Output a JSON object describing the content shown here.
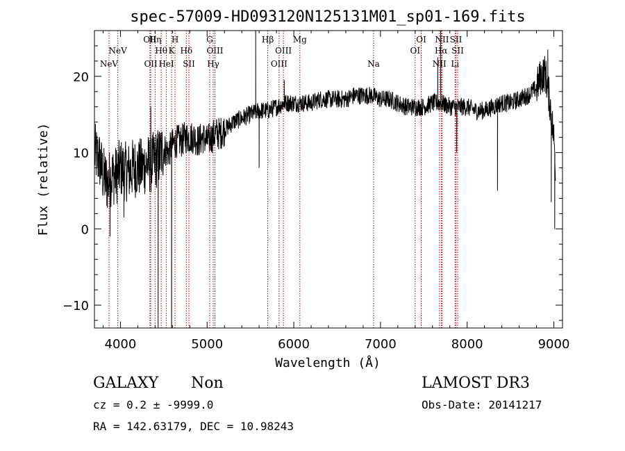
{
  "chart_data": {
    "type": "line",
    "title": "spec-57009-HD093120N125131M01_sp01-169.fits",
    "xlabel": "Wavelength (Å)",
    "ylabel": "Flux (relative)",
    "xlim": [
      3700,
      9100
    ],
    "ylim": [
      -13,
      26
    ],
    "xticks": [
      4000,
      5000,
      6000,
      7000,
      8000,
      9000
    ],
    "yticks": [
      -10,
      0,
      10,
      20
    ],
    "colors": {
      "spectrum": "#000000",
      "lines": "#aa0000",
      "axes": "#000000"
    },
    "spectrum_anchors": {
      "wavelength": [
        3700,
        3760,
        3800,
        3850,
        3900,
        3950,
        4000,
        4050,
        4100,
        4150,
        4200,
        4250,
        4300,
        4350,
        4400,
        4450,
        4500,
        4550,
        4600,
        4650,
        4700,
        4750,
        4800,
        4850,
        4900,
        4950,
        5000,
        5050,
        5100,
        5150,
        5200,
        5300,
        5400,
        5500,
        5600,
        5700,
        5800,
        5900,
        6000,
        6100,
        6200,
        6300,
        6400,
        6500,
        6600,
        6700,
        6800,
        6900,
        7000,
        7100,
        7200,
        7300,
        7400,
        7500,
        7600,
        7650,
        7700,
        7800,
        7900,
        8000,
        8100,
        8200,
        8300,
        8400,
        8500,
        8600,
        8700,
        8800,
        8850,
        8900,
        8950,
        9000,
        9020
      ],
      "flux": [
        10,
        9,
        7,
        6,
        7,
        7,
        8,
        7.5,
        7.5,
        8,
        8,
        8,
        8.5,
        8.5,
        9,
        9.5,
        10.5,
        10,
        11,
        11.5,
        11.5,
        12,
        12,
        12,
        11.5,
        12,
        11.5,
        12,
        12.5,
        12.5,
        13,
        14,
        14.5,
        15,
        15.5,
        15.5,
        16,
        16.5,
        16.5,
        16.5,
        16.5,
        17,
        17,
        17,
        17,
        17.5,
        17.5,
        17.5,
        17,
        17,
        16.5,
        16,
        16,
        16,
        16.5,
        16.5,
        16.5,
        16,
        16,
        16,
        15.5,
        15.5,
        16,
        16.5,
        16.5,
        17,
        17.5,
        18.5,
        20,
        20.5,
        17,
        12,
        8
      ]
    },
    "spectrum_features": [
      {
        "wavelength": 3880,
        "flux": -1
      },
      {
        "wavelength": 4040,
        "flux": 1.5
      },
      {
        "wavelength": 4350,
        "flux": 16
      },
      {
        "wavelength": 4435,
        "flux": -13
      },
      {
        "wavelength": 4590,
        "flux": -13
      },
      {
        "wavelength": 5560,
        "flux": 26
      },
      {
        "wavelength": 5600,
        "flux": 8
      },
      {
        "wavelength": 5890,
        "flux": 19.5
      },
      {
        "wavelength": 7660,
        "flux": 22.5
      },
      {
        "wavelength": 7695,
        "flux": 26
      },
      {
        "wavelength": 7880,
        "flux": 10
      },
      {
        "wavelength": 8350,
        "flux": 5
      },
      {
        "wavelength": 8930,
        "flux": 23.5
      },
      {
        "wavelength": 8970,
        "flux": 3.5
      },
      {
        "wavelength": 9010,
        "flux": 0
      }
    ],
    "lines": [
      {
        "label": "NeV",
        "wavelength": 3868,
        "row": 3
      },
      {
        "label": "NeV",
        "wavelength": 3970,
        "row": 2
      },
      {
        "label": "OII",
        "wavelength": 4340,
        "row": 1
      },
      {
        "label": "OII",
        "wavelength": 4350,
        "row": 3
      },
      {
        "label": "Hη",
        "wavelength": 4400,
        "row": 1
      },
      {
        "label": "Hθ",
        "wavelength": 4470,
        "row": 2
      },
      {
        "label": "HeI",
        "wavelength": 4530,
        "row": 3
      },
      {
        "label": "K",
        "wavelength": 4590,
        "row": 2
      },
      {
        "label": "H",
        "wavelength": 4630,
        "row": 1
      },
      {
        "label": "Hδ",
        "wavelength": 4760,
        "row": 2
      },
      {
        "label": "SII",
        "wavelength": 4790,
        "row": 3
      },
      {
        "label": "G",
        "wavelength": 5030,
        "row": 1
      },
      {
        "label": "OIII",
        "wavelength": 5090,
        "row": 2
      },
      {
        "label": "Hγ",
        "wavelength": 5070,
        "row": 3
      },
      {
        "label": "Hβ",
        "wavelength": 5700,
        "row": 1
      },
      {
        "label": "OIII",
        "wavelength": 5830,
        "row": 3
      },
      {
        "label": "OIII",
        "wavelength": 5880,
        "row": 2
      },
      {
        "label": "Mg",
        "wavelength": 6070,
        "row": 1
      },
      {
        "label": "Na",
        "wavelength": 6920,
        "row": 3
      },
      {
        "label": "OI",
        "wavelength": 7400,
        "row": 2
      },
      {
        "label": "OI",
        "wavelength": 7470,
        "row": 1
      },
      {
        "label": "Hα",
        "wavelength": 7700,
        "row": 2
      },
      {
        "label": "NII",
        "wavelength": 7680,
        "row": 3
      },
      {
        "label": "NII",
        "wavelength": 7710,
        "row": 1
      },
      {
        "label": "SII",
        "wavelength": 7870,
        "row": 1
      },
      {
        "label": "SII",
        "wavelength": 7890,
        "row": 2
      },
      {
        "label": "Li",
        "wavelength": 7860,
        "row": 3
      }
    ]
  },
  "info": {
    "class_label": "GALAXY",
    "subclass_label": "Non",
    "cz_line": "cz = 0.2 ± -9999.0",
    "radec_line": "RA = 142.63179, DEC =  10.98243",
    "survey_label": "LAMOST DR3",
    "obsdate_line": "Obs-Date: 20141217"
  }
}
